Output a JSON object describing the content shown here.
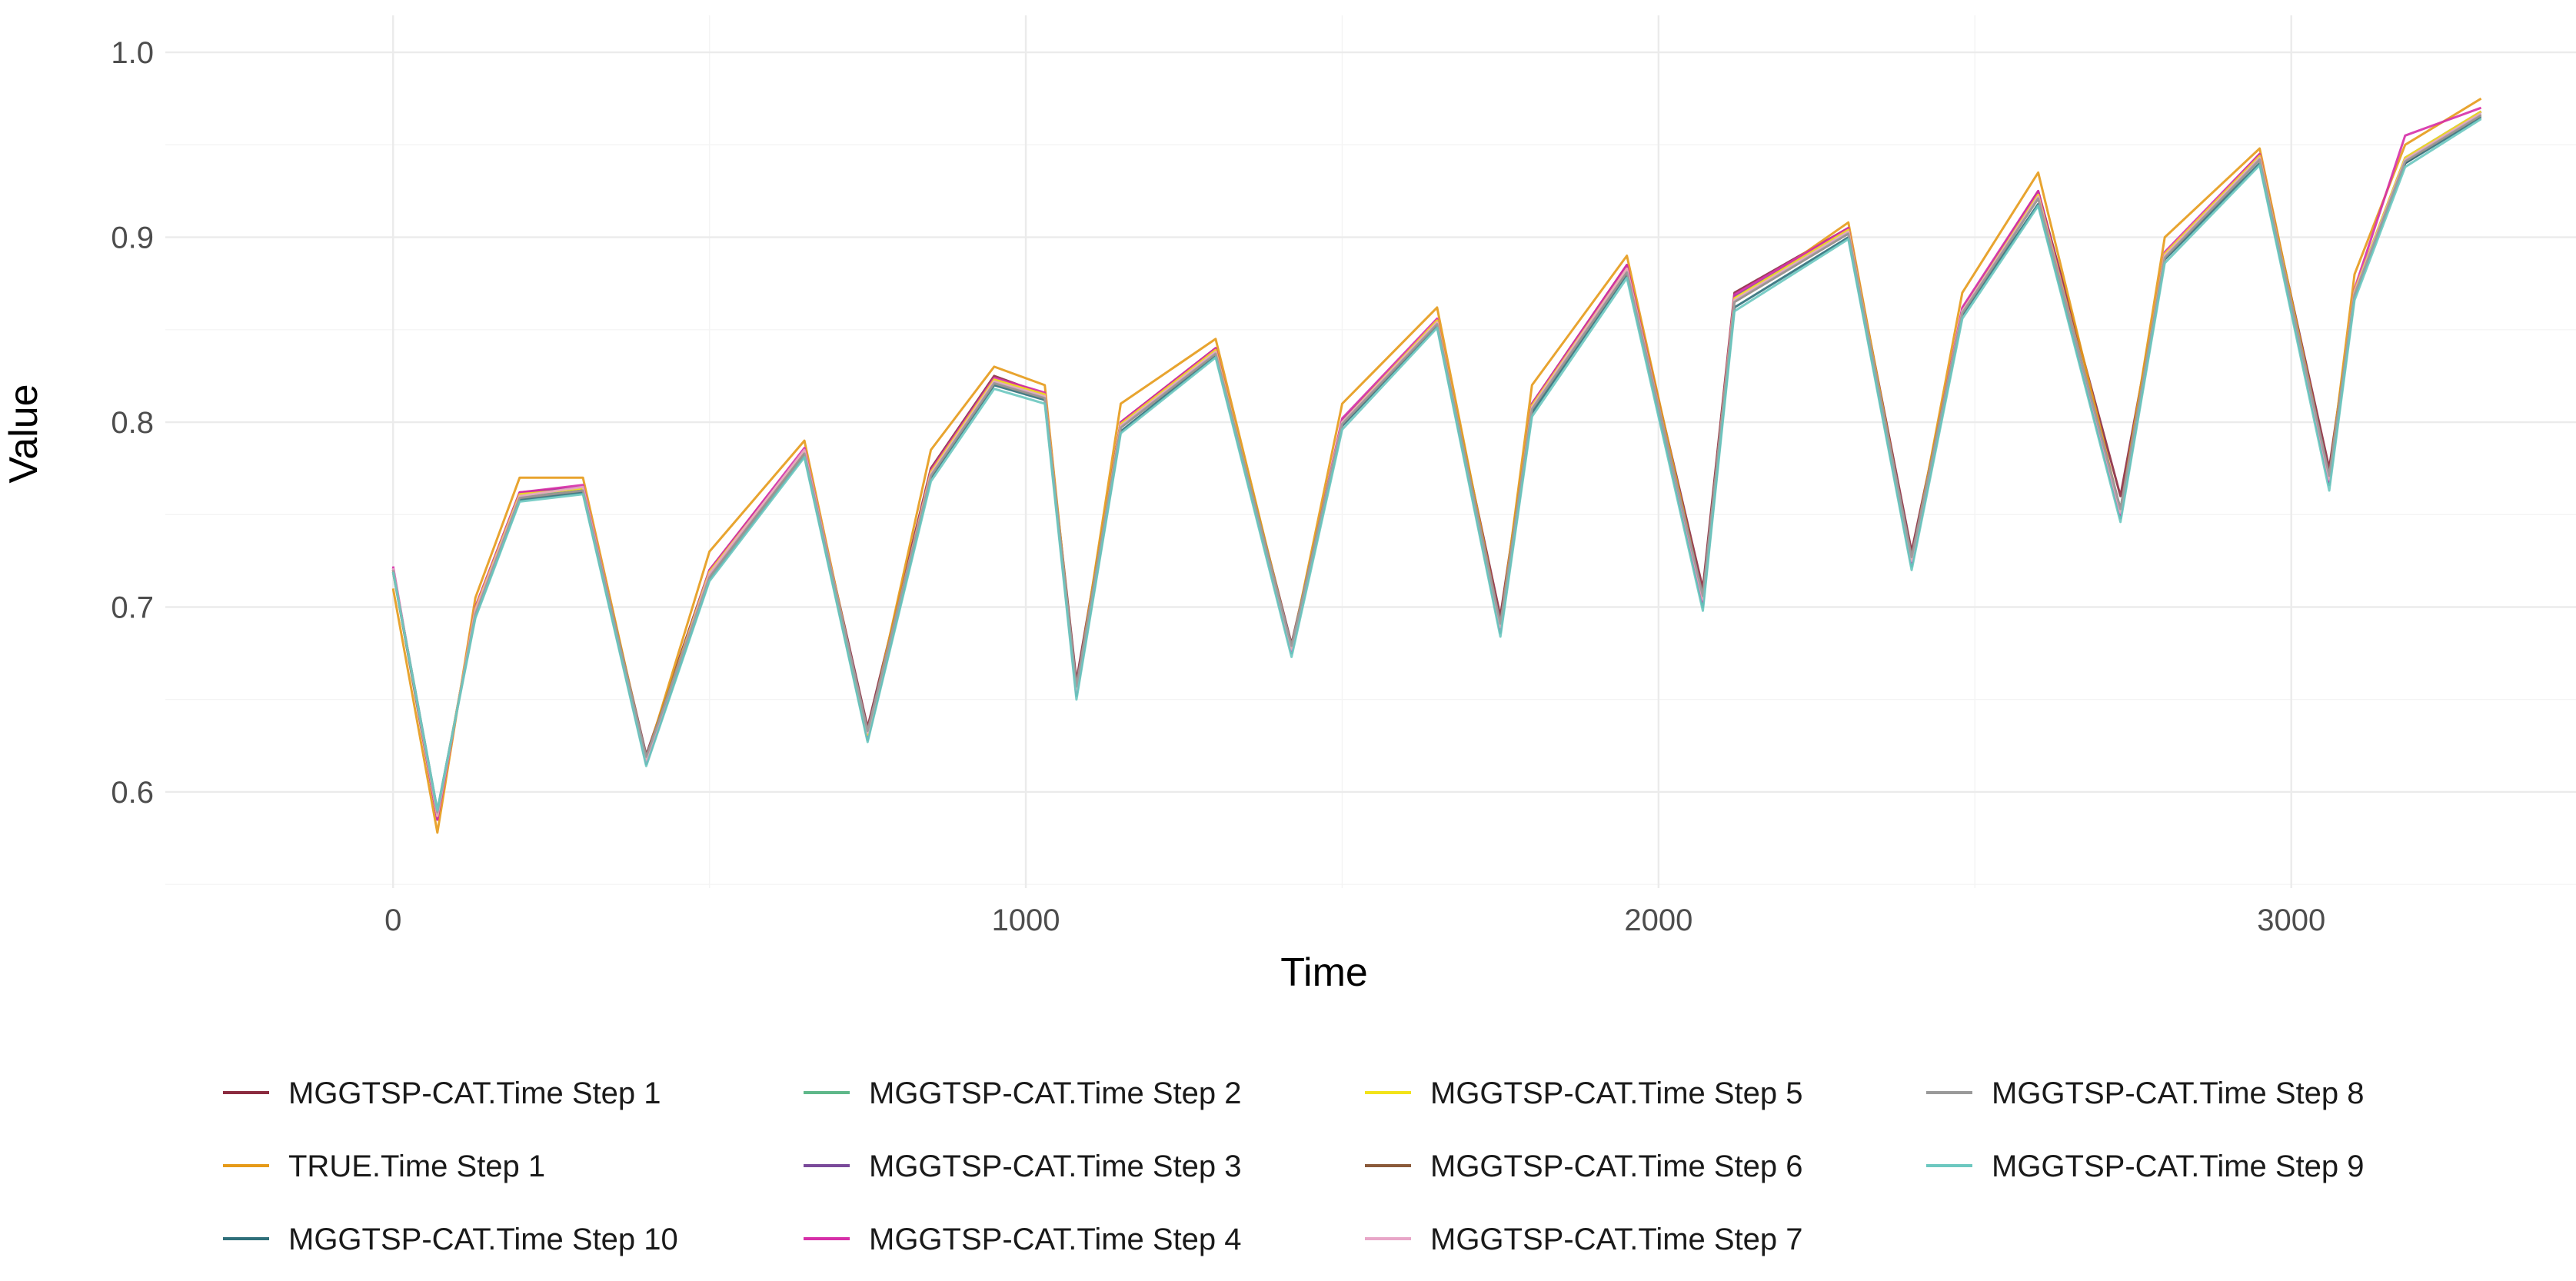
{
  "chart_data": {
    "type": "line",
    "title": "",
    "xlabel": "Time",
    "ylabel": "Value",
    "xlim": [
      -360,
      3450
    ],
    "ylim": [
      0.548,
      1.02
    ],
    "x_ticks": [
      0,
      1000,
      2000,
      3000
    ],
    "x_tick_labels": [
      "0",
      "1000",
      "2000",
      "3000"
    ],
    "y_ticks": [
      0.6,
      0.7,
      0.8,
      0.9,
      1.0
    ],
    "y_tick_labels": [
      "0.6",
      "0.7",
      "0.8",
      "0.9",
      "1.0"
    ],
    "grid": true,
    "legend_position": "bottom",
    "x": [
      0,
      70,
      130,
      200,
      300,
      400,
      500,
      650,
      750,
      850,
      950,
      1030,
      1080,
      1150,
      1300,
      1420,
      1500,
      1650,
      1750,
      1800,
      1950,
      2070,
      2120,
      2300,
      2400,
      2480,
      2600,
      2730,
      2800,
      2950,
      3060,
      3100,
      3180,
      3300
    ],
    "series": [
      {
        "name": "MGGTSP-CAT.Time Step 1",
        "color": "#8b2b3f",
        "values": [
          0.72,
          0.585,
          0.7,
          0.762,
          0.765,
          0.62,
          0.72,
          0.785,
          0.635,
          0.775,
          0.825,
          0.815,
          0.66,
          0.8,
          0.84,
          0.68,
          0.8,
          0.855,
          0.695,
          0.81,
          0.885,
          0.71,
          0.87,
          0.905,
          0.73,
          0.86,
          0.925,
          0.76,
          0.89,
          0.945,
          0.775,
          0.87,
          0.94,
          0.968
        ]
      },
      {
        "name": "TRUE.Time Step 1",
        "color": "#e69a18",
        "values": [
          0.71,
          0.578,
          0.705,
          0.77,
          0.77,
          0.618,
          0.73,
          0.79,
          0.63,
          0.785,
          0.83,
          0.82,
          0.655,
          0.81,
          0.845,
          0.678,
          0.81,
          0.862,
          0.69,
          0.82,
          0.89,
          0.705,
          0.865,
          0.908,
          0.725,
          0.87,
          0.935,
          0.752,
          0.9,
          0.948,
          0.77,
          0.88,
          0.95,
          0.975
        ]
      },
      {
        "name": "MGGTSP-CAT.Time Step 10",
        "color": "#2f6f7a",
        "values": [
          0.72,
          0.59,
          0.695,
          0.758,
          0.762,
          0.615,
          0.715,
          0.782,
          0.628,
          0.77,
          0.82,
          0.812,
          0.652,
          0.795,
          0.836,
          0.675,
          0.798,
          0.852,
          0.686,
          0.805,
          0.88,
          0.7,
          0.862,
          0.9,
          0.722,
          0.858,
          0.918,
          0.748,
          0.888,
          0.94,
          0.766,
          0.868,
          0.94,
          0.965
        ]
      },
      {
        "name": "MGGTSP-CAT.Time Step 2",
        "color": "#5fb88a",
        "values": [
          0.72,
          0.588,
          0.698,
          0.76,
          0.764,
          0.618,
          0.718,
          0.784,
          0.632,
          0.772,
          0.822,
          0.814,
          0.656,
          0.798,
          0.838,
          0.678,
          0.8,
          0.854,
          0.69,
          0.808,
          0.882,
          0.705,
          0.866,
          0.903,
          0.726,
          0.86,
          0.922,
          0.752,
          0.89,
          0.943,
          0.77,
          0.87,
          0.942,
          0.967
        ]
      },
      {
        "name": "MGGTSP-CAT.Time Step 3",
        "color": "#7a4a9a",
        "values": [
          0.721,
          0.586,
          0.699,
          0.761,
          0.765,
          0.617,
          0.719,
          0.785,
          0.631,
          0.773,
          0.823,
          0.815,
          0.655,
          0.799,
          0.839,
          0.677,
          0.801,
          0.855,
          0.689,
          0.809,
          0.884,
          0.704,
          0.868,
          0.904,
          0.725,
          0.861,
          0.924,
          0.751,
          0.891,
          0.944,
          0.769,
          0.871,
          0.943,
          0.968
        ]
      },
      {
        "name": "MGGTSP-CAT.Time Step 4",
        "color": "#d62fa8",
        "values": [
          0.722,
          0.585,
          0.7,
          0.762,
          0.766,
          0.616,
          0.72,
          0.786,
          0.63,
          0.774,
          0.824,
          0.816,
          0.654,
          0.8,
          0.84,
          0.676,
          0.802,
          0.856,
          0.688,
          0.81,
          0.885,
          0.703,
          0.869,
          0.905,
          0.724,
          0.862,
          0.925,
          0.75,
          0.892,
          0.945,
          0.768,
          0.872,
          0.955,
          0.97
        ]
      },
      {
        "name": "MGGTSP-CAT.Time Step 5",
        "color": "#f2e31a",
        "values": [
          0.72,
          0.587,
          0.699,
          0.761,
          0.764,
          0.618,
          0.719,
          0.784,
          0.631,
          0.773,
          0.823,
          0.815,
          0.656,
          0.799,
          0.839,
          0.678,
          0.8,
          0.855,
          0.69,
          0.809,
          0.883,
          0.705,
          0.867,
          0.904,
          0.726,
          0.86,
          0.923,
          0.752,
          0.891,
          0.944,
          0.77,
          0.871,
          0.943,
          0.968
        ]
      },
      {
        "name": "MGGTSP-CAT.Time Step 6",
        "color": "#8a5a3a",
        "values": [
          0.719,
          0.588,
          0.697,
          0.759,
          0.763,
          0.619,
          0.717,
          0.783,
          0.633,
          0.771,
          0.821,
          0.813,
          0.657,
          0.797,
          0.837,
          0.679,
          0.799,
          0.853,
          0.691,
          0.807,
          0.881,
          0.706,
          0.865,
          0.902,
          0.727,
          0.859,
          0.921,
          0.753,
          0.889,
          0.942,
          0.771,
          0.869,
          0.941,
          0.966
        ]
      },
      {
        "name": "MGGTSP-CAT.Time Step 7",
        "color": "#e8a6c8",
        "values": [
          0.721,
          0.587,
          0.698,
          0.76,
          0.765,
          0.617,
          0.718,
          0.785,
          0.632,
          0.772,
          0.822,
          0.814,
          0.655,
          0.798,
          0.838,
          0.677,
          0.8,
          0.854,
          0.689,
          0.808,
          0.883,
          0.704,
          0.866,
          0.903,
          0.725,
          0.86,
          0.922,
          0.751,
          0.89,
          0.943,
          0.769,
          0.87,
          0.942,
          0.967
        ]
      },
      {
        "name": "MGGTSP-CAT.Time Step 8",
        "color": "#9a9a9a",
        "values": [
          0.72,
          0.589,
          0.696,
          0.759,
          0.763,
          0.619,
          0.716,
          0.783,
          0.633,
          0.771,
          0.821,
          0.813,
          0.657,
          0.797,
          0.837,
          0.679,
          0.799,
          0.853,
          0.691,
          0.807,
          0.881,
          0.706,
          0.865,
          0.902,
          0.727,
          0.859,
          0.921,
          0.753,
          0.889,
          0.942,
          0.771,
          0.869,
          0.941,
          0.966
        ]
      },
      {
        "name": "MGGTSP-CAT.Time Step 9",
        "color": "#6cc8c0",
        "values": [
          0.719,
          0.59,
          0.694,
          0.757,
          0.761,
          0.614,
          0.714,
          0.781,
          0.627,
          0.768,
          0.818,
          0.81,
          0.65,
          0.794,
          0.835,
          0.673,
          0.796,
          0.851,
          0.684,
          0.803,
          0.878,
          0.698,
          0.86,
          0.899,
          0.72,
          0.856,
          0.917,
          0.746,
          0.886,
          0.939,
          0.763,
          0.866,
          0.938,
          0.964
        ]
      }
    ]
  },
  "legend": {
    "columns": [
      [
        "MGGTSP-CAT.Time Step 1",
        "TRUE.Time Step 1",
        "MGGTSP-CAT.Time Step 10"
      ],
      [
        "MGGTSP-CAT.Time Step 2",
        "MGGTSP-CAT.Time Step 3",
        "MGGTSP-CAT.Time Step 4"
      ],
      [
        "MGGTSP-CAT.Time Step 5",
        "MGGTSP-CAT.Time Step 6",
        "MGGTSP-CAT.Time Step 7"
      ],
      [
        "MGGTSP-CAT.Time Step 8",
        "MGGTSP-CAT.Time Step 9"
      ]
    ]
  }
}
